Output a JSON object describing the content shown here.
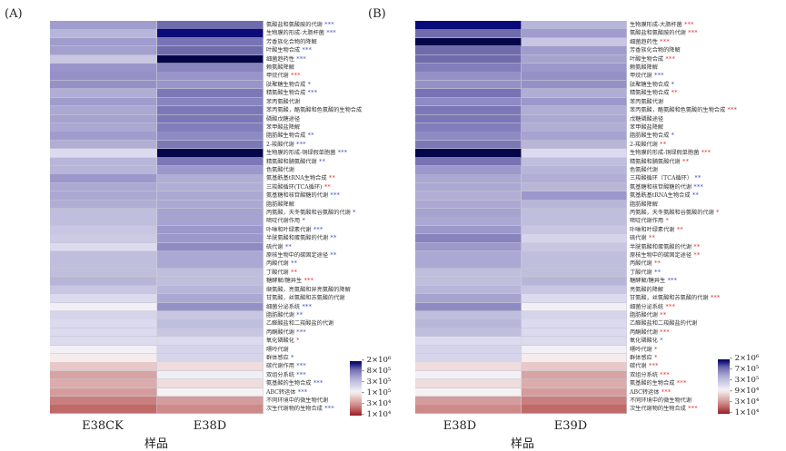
{
  "colors": {
    "star_blue": "#3a4fb4",
    "star_red": "#e03030",
    "high": "#05054a",
    "mid": "#f8f6f8",
    "low": "#9a1a28"
  },
  "chart_data": [
    {
      "type": "heatmap",
      "panel": "(A)",
      "xlabel": "样品",
      "columns": [
        "E38CK",
        "E38D"
      ],
      "legend": {
        "placement": "bottom-right",
        "ticks": [
          "2×10⁶",
          "8×10⁵",
          "3×10⁵",
          "1×10⁵",
          "3×10⁴",
          "1×10⁴"
        ],
        "range": [
          10000,
          2000000
        ]
      },
      "rows": [
        {
          "label": "氨酸盐和氨酸胺的代谢",
          "stars": "***",
          "star_color": "blue"
        },
        {
          "label": "生物膜的形成-大肠杆菌",
          "stars": "***",
          "star_color": "blue"
        },
        {
          "label": "芳香族化合物的降解",
          "stars": "",
          "star_color": ""
        },
        {
          "label": "叶酸生物合成",
          "stars": "***",
          "star_color": "blue"
        },
        {
          "label": "细菌趋药性",
          "stars": "***",
          "star_color": "blue"
        },
        {
          "label": "赖氨酸降解",
          "stars": "",
          "star_color": ""
        },
        {
          "label": "甲烷代谢",
          "stars": "***",
          "star_color": "red"
        },
        {
          "label": "肽聚糖生物合成",
          "stars": "*",
          "star_color": "blue"
        },
        {
          "label": "精氨酸生物合成",
          "stars": "***",
          "star_color": "blue"
        },
        {
          "label": "苯丙氨酸代谢",
          "stars": "",
          "star_color": ""
        },
        {
          "label": "苯丙氨酸，酪氨酸和色氨酸的生物合成",
          "stars": "",
          "star_color": ""
        },
        {
          "label": "磷酸戊糖途径",
          "stars": "",
          "star_color": ""
        },
        {
          "label": "苯甲酸盐降解",
          "stars": "",
          "star_color": ""
        },
        {
          "label": "脂肪酸生物合成",
          "stars": "**",
          "star_color": "blue"
        },
        {
          "label": "2-羧酸代谢",
          "stars": "***",
          "star_color": "blue"
        },
        {
          "label": "生物膜的形成-铜绿假单胞菌",
          "stars": "***",
          "star_color": "blue"
        },
        {
          "label": "精氨酸和脯氨酸代谢",
          "stars": "**",
          "star_color": "blue"
        },
        {
          "label": "色氨酸代谢",
          "stars": "",
          "star_color": ""
        },
        {
          "label": "氨基酰基tRNA生物合成",
          "stars": "**",
          "star_color": "red"
        },
        {
          "label": "三羧酸循环(TCA循环)",
          "stars": "**",
          "star_color": "red"
        },
        {
          "label": "氨基糖和核苷酸糖的代谢",
          "stars": "***",
          "star_color": "blue"
        },
        {
          "label": "脂肪酸降解",
          "stars": "",
          "star_color": ""
        },
        {
          "label": "丙氨酸，天冬氨酸和谷氨酸的代谢",
          "stars": "*",
          "star_color": "blue"
        },
        {
          "label": "嘧啶代谢作用",
          "stars": "*",
          "star_color": "blue"
        },
        {
          "label": "卟啉和叶绿素代谢",
          "stars": "***",
          "star_color": "blue"
        },
        {
          "label": "半胱氨酸和蛋氨酸的代谢",
          "stars": "**",
          "star_color": "blue"
        },
        {
          "label": "硫代谢",
          "stars": "**",
          "star_color": "blue"
        },
        {
          "label": "原核生物中的碳固定途径",
          "stars": "**",
          "star_color": "blue"
        },
        {
          "label": "丙酸代谢",
          "stars": "**",
          "star_color": "blue"
        },
        {
          "label": "丁酸代谢",
          "stars": "**",
          "star_color": "red"
        },
        {
          "label": "糖酵解/糖异生",
          "stars": "***",
          "star_color": "red"
        },
        {
          "label": "缬氨酸，亮氨酸和异亮氨酸的降解",
          "stars": "",
          "star_color": ""
        },
        {
          "label": "甘氨酸，丝氨酸和苏氨酸的代谢",
          "stars": "",
          "star_color": ""
        },
        {
          "label": "细菌分泌系统",
          "stars": "***",
          "star_color": "blue"
        },
        {
          "label": "脂肪酸代谢",
          "stars": "**",
          "star_color": "blue"
        },
        {
          "label": "乙醛酸盐和二羧酸盐的代谢",
          "stars": "",
          "star_color": ""
        },
        {
          "label": "丙酮酸代谢",
          "stars": "***",
          "star_color": "blue"
        },
        {
          "label": "氧化磷酸化",
          "stars": "*",
          "star_color": "red"
        },
        {
          "label": "嘌呤代谢",
          "stars": "",
          "star_color": ""
        },
        {
          "label": "群体感应",
          "stars": "*",
          "star_color": "blue"
        },
        {
          "label": "碳代谢作用",
          "stars": "***",
          "star_color": "blue"
        },
        {
          "label": "双组分系统",
          "stars": "***",
          "star_color": "blue"
        },
        {
          "label": "氨基酸的生物合成",
          "stars": "***",
          "star_color": "blue"
        },
        {
          "label": "ABC转运体",
          "stars": "***",
          "star_color": "blue"
        },
        {
          "label": "不同环境中的微生物代谢",
          "stars": "",
          "star_color": ""
        },
        {
          "label": "次生代谢物的生物合成",
          "stars": "***",
          "star_color": "blue"
        }
      ],
      "values": [
        [
          470000,
          330000,
          470000,
          450000,
          240000,
          520000,
          550000,
          550000,
          370000,
          470000,
          400000,
          430000,
          400000,
          470000,
          370000,
          160000,
          330000,
          330000,
          500000,
          400000,
          400000,
          370000,
          280000,
          280000,
          240000,
          220000,
          160000,
          280000,
          280000,
          280000,
          330000,
          240000,
          160000,
          110000,
          180000,
          160000,
          160000,
          160000,
          110000,
          90000,
          60000,
          37000,
          42000,
          34000,
          25000,
          20000
        ],
        [
          900000,
          1700000,
          800000,
          900000,
          2000000,
          650000,
          520000,
          520000,
          750000,
          650000,
          750000,
          750000,
          700000,
          600000,
          750000,
          2000000,
          750000,
          500000,
          370000,
          370000,
          400000,
          400000,
          430000,
          430000,
          500000,
          500000,
          600000,
          400000,
          400000,
          280000,
          280000,
          330000,
          400000,
          550000,
          240000,
          280000,
          240000,
          160000,
          180000,
          180000,
          75000,
          115000,
          75000,
          95000,
          34000,
          28000
        ]
      ]
    },
    {
      "type": "heatmap",
      "panel": "(B)",
      "xlabel": "样品",
      "columns": [
        "E38D",
        "E39D"
      ],
      "legend": {
        "placement": "bottom-right",
        "ticks": [
          "2×10⁶",
          "7×10⁵",
          "3×10⁵",
          "9×10⁴",
          "3×10⁴",
          "1×10⁴"
        ],
        "range": [
          10000,
          2000000
        ]
      },
      "rows": [
        {
          "label": "生物膜形成-大肠杆菌",
          "stars": "***",
          "star_color": "red"
        },
        {
          "label": "氨酸盐和氨酸胺的代谢",
          "stars": "***",
          "star_color": "red"
        },
        {
          "label": "细菌趋药性",
          "stars": "***",
          "star_color": "red"
        },
        {
          "label": "芳香族化合物的降解",
          "stars": "",
          "star_color": ""
        },
        {
          "label": "叶酸生物合成",
          "stars": "***",
          "star_color": "red"
        },
        {
          "label": "赖氨酸降解",
          "stars": "",
          "star_color": ""
        },
        {
          "label": "甲烷代谢",
          "stars": "***",
          "star_color": "blue"
        },
        {
          "label": "肽聚糖生物合成",
          "stars": "*",
          "star_color": "blue"
        },
        {
          "label": "精氨酸生物合成",
          "stars": "**",
          "star_color": "red"
        },
        {
          "label": "苯丙氨酸代谢",
          "stars": "",
          "star_color": ""
        },
        {
          "label": "苯丙氨酸，酪氨酸和色氨酸的生物合成",
          "stars": "***",
          "star_color": "red"
        },
        {
          "label": "戊糖磷酸途径",
          "stars": "",
          "star_color": ""
        },
        {
          "label": "苯甲酸盐降解",
          "stars": "",
          "star_color": ""
        },
        {
          "label": "脂肪酸生物合成",
          "stars": "*",
          "star_color": "blue"
        },
        {
          "label": "2-羧酸代谢",
          "stars": "**",
          "star_color": "red"
        },
        {
          "label": "生物膜的形成-铜绿假单胞菌",
          "stars": "***",
          "star_color": "red"
        },
        {
          "label": "精氨酸和脯氨酸代谢",
          "stars": "**",
          "star_color": "red"
        },
        {
          "label": "色氨酸代谢",
          "stars": "",
          "star_color": ""
        },
        {
          "label": "三羧酸循环（TCA循环）",
          "stars": "**",
          "star_color": "blue"
        },
        {
          "label": "氨基糖和核苷酸糖的代谢",
          "stars": "***",
          "star_color": "blue"
        },
        {
          "label": "氨基酰基tRNA生物合成",
          "stars": "**",
          "star_color": "blue"
        },
        {
          "label": "脂肪酸降解",
          "stars": "",
          "star_color": ""
        },
        {
          "label": "丙氨酸，天冬氨酸和谷氨酸的代谢",
          "stars": "*",
          "star_color": "red"
        },
        {
          "label": "嘧啶代谢作用",
          "stars": "*",
          "star_color": "red"
        },
        {
          "label": "卟啉和叶绿素代谢",
          "stars": "**",
          "star_color": "red"
        },
        {
          "label": "硫代谢",
          "stars": "**",
          "star_color": "red"
        },
        {
          "label": "半胱氨酸和蛋氨酸的代谢",
          "stars": "**",
          "star_color": "red"
        },
        {
          "label": "原核生物中的碳固定途径",
          "stars": "**",
          "star_color": "red"
        },
        {
          "label": "丙酸代谢",
          "stars": "**",
          "star_color": "red"
        },
        {
          "label": "丁酸代谢",
          "stars": "**",
          "star_color": "blue"
        },
        {
          "label": "糖酵解/糖异生",
          "stars": "***",
          "star_color": "blue"
        },
        {
          "label": "亮氨酸的降解",
          "stars": "",
          "star_color": ""
        },
        {
          "label": "甘氨酸，丝氨酸和苏氨酸的代谢",
          "stars": "***",
          "star_color": "red"
        },
        {
          "label": "细菌分泌系统",
          "stars": "***",
          "star_color": "red"
        },
        {
          "label": "脂肪酸代谢",
          "stars": "**",
          "star_color": "red"
        },
        {
          "label": "乙醛酸盐和二羧酸盐的代谢",
          "stars": "",
          "star_color": ""
        },
        {
          "label": "丙酮酸代谢",
          "stars": "***",
          "star_color": "red"
        },
        {
          "label": "氧化磷酸化",
          "stars": "*",
          "star_color": "blue"
        },
        {
          "label": "嘌呤代谢",
          "stars": "*",
          "star_color": "red"
        },
        {
          "label": "群体感应",
          "stars": "*",
          "star_color": "red"
        },
        {
          "label": "碳代谢",
          "stars": "***",
          "star_color": "red"
        },
        {
          "label": "双组分系统",
          "stars": "***",
          "star_color": "red"
        },
        {
          "label": "氨基酸的生物合成",
          "stars": "***",
          "star_color": "red"
        },
        {
          "label": "ABC转运体",
          "stars": "***",
          "star_color": "red"
        },
        {
          "label": "不同环境中的微生物代谢",
          "stars": "",
          "star_color": ""
        },
        {
          "label": "次生代谢物的生物合成",
          "stars": "***",
          "star_color": "red"
        }
      ],
      "values": [
        [
          1700000,
          900000,
          2000000,
          900000,
          900000,
          700000,
          550000,
          550000,
          800000,
          600000,
          750000,
          750000,
          700000,
          600000,
          750000,
          2000000,
          800000,
          500000,
          400000,
          400000,
          370000,
          400000,
          430000,
          400000,
          500000,
          650000,
          500000,
          400000,
          400000,
          280000,
          280000,
          330000,
          430000,
          600000,
          280000,
          330000,
          280000,
          160000,
          180000,
          180000,
          75000,
          110000,
          75000,
          95000,
          34000,
          28000
        ],
        [
          330000,
          470000,
          240000,
          470000,
          430000,
          500000,
          550000,
          550000,
          370000,
          500000,
          370000,
          400000,
          370000,
          430000,
          330000,
          160000,
          280000,
          330000,
          370000,
          330000,
          500000,
          330000,
          280000,
          280000,
          240000,
          180000,
          240000,
          280000,
          280000,
          280000,
          330000,
          240000,
          160000,
          110000,
          180000,
          160000,
          160000,
          160000,
          110000,
          90000,
          60000,
          37000,
          42000,
          34000,
          25000,
          20000
        ]
      ]
    }
  ]
}
